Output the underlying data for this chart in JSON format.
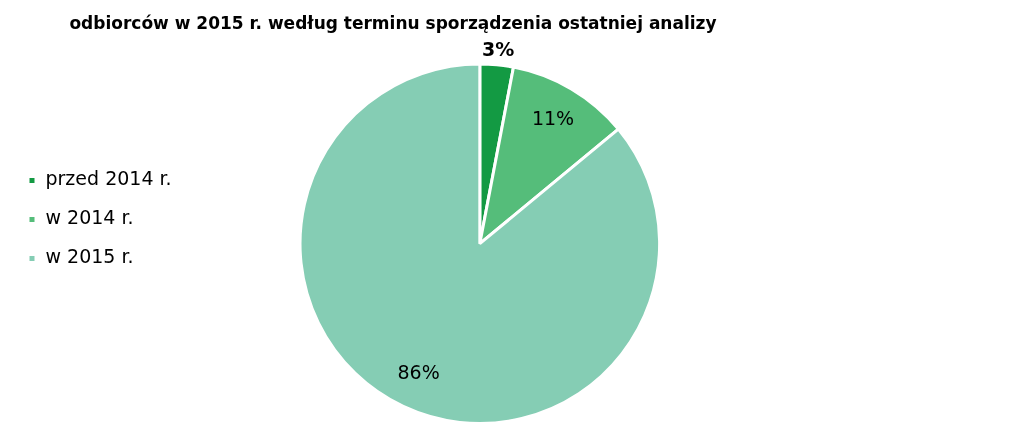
{
  "chart_data": {
    "type": "pie",
    "title": "odbiorców w 2015 r. według terminu sporządzenia ostatniej analizy",
    "categories": [
      "przed 2014 r.",
      "w 2014 r.",
      "w 2015 r."
    ],
    "values": [
      3,
      11,
      86
    ],
    "colors": [
      "#139a43",
      "#55bd7a",
      "#85cdb4"
    ],
    "value_labels": [
      "3%",
      "11%",
      "86%"
    ],
    "legend": "left"
  }
}
